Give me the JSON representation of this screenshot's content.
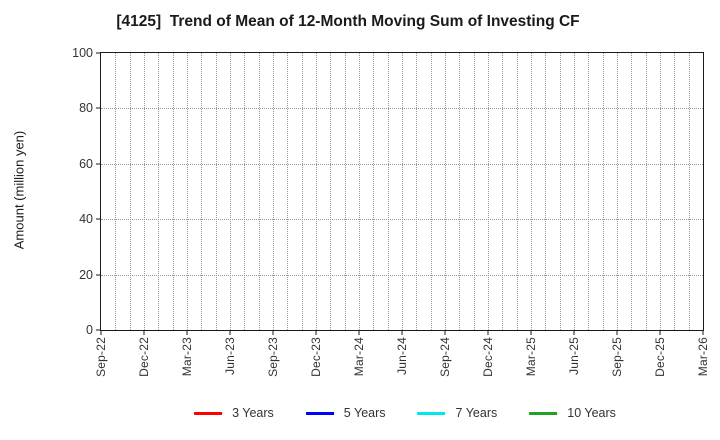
{
  "chart_data": {
    "type": "line",
    "title": "[4125]  Trend of Mean of 12-Month Moving Sum of Investing CF",
    "xlabel": "",
    "ylabel": "Amount (million yen)",
    "ylim": [
      0,
      100
    ],
    "yticks": [
      0,
      20,
      40,
      60,
      80,
      100
    ],
    "x_tick_labels": [
      "Sep-22",
      "Dec-22",
      "Mar-23",
      "Jun-23",
      "Sep-23",
      "Dec-23",
      "Mar-24",
      "Jun-24",
      "Sep-24",
      "Dec-24",
      "Mar-25",
      "Jun-25",
      "Sep-25",
      "Dec-25",
      "Mar-26"
    ],
    "x_months_total": 42,
    "x_label_interval_months": 3,
    "grid": {
      "style": "dotted",
      "color": "#999999",
      "vertical": "monthly",
      "horizontal_every": 20
    },
    "legend_position": "bottom-center",
    "series": [
      {
        "name": "3 Years",
        "color": "#ff0000",
        "values": []
      },
      {
        "name": "5 Years",
        "color": "#0000ff",
        "values": []
      },
      {
        "name": "7 Years",
        "color": "#00e8e8",
        "values": []
      },
      {
        "name": "10 Years",
        "color": "#22a022",
        "values": []
      }
    ]
  }
}
